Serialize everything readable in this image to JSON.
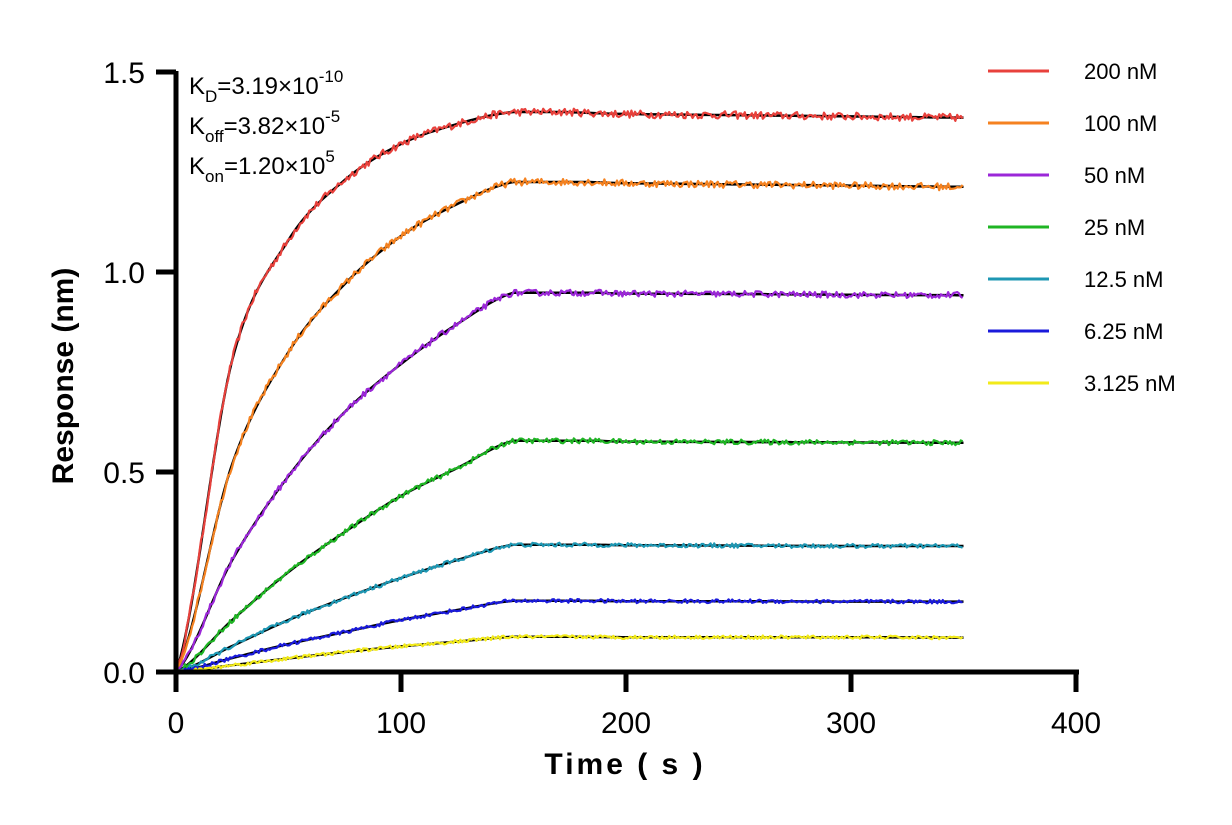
{
  "chart_data": {
    "type": "line",
    "title": "",
    "xlabel": "Time ( s )",
    "ylabel": "Response (nm)",
    "xlim": [
      0,
      400
    ],
    "ylim": [
      0,
      1.5
    ],
    "xticks": [
      0,
      100,
      200,
      300,
      400
    ],
    "yticks": [
      0.0,
      0.5,
      1.0,
      1.5
    ],
    "xtick_labels": [
      "0",
      "100",
      "200",
      "300",
      "400"
    ],
    "ytick_labels": [
      "0.0",
      "0.5",
      "1.0",
      "1.5"
    ],
    "grid": false,
    "legend": "right",
    "association_end": 150,
    "end_time": 350,
    "fit_color": "#000000",
    "series": [
      {
        "name": "200 nM",
        "color": "#e8413c",
        "x": [
          0,
          25,
          50,
          75,
          100,
          125,
          150,
          200,
          250,
          300,
          350
        ],
        "values": [
          0,
          0.78,
          1.08,
          1.23,
          1.32,
          1.37,
          1.4,
          1.395,
          1.392,
          1.389,
          1.386
        ]
      },
      {
        "name": "100 nM",
        "color": "#f58220",
        "x": [
          0,
          25,
          50,
          75,
          100,
          125,
          150,
          200,
          250,
          300,
          350
        ],
        "values": [
          0,
          0.52,
          0.8,
          0.97,
          1.09,
          1.17,
          1.225,
          1.222,
          1.219,
          1.216,
          1.213
        ]
      },
      {
        "name": "50 nM",
        "color": "#9b27d8",
        "x": [
          0,
          25,
          50,
          75,
          100,
          125,
          150,
          200,
          250,
          300,
          350
        ],
        "values": [
          0,
          0.28,
          0.49,
          0.65,
          0.77,
          0.87,
          0.948,
          0.946,
          0.945,
          0.943,
          0.942
        ]
      },
      {
        "name": "25 nM",
        "color": "#1fb524",
        "x": [
          0,
          25,
          50,
          75,
          100,
          125,
          150,
          200,
          250,
          300,
          350
        ],
        "values": [
          0,
          0.13,
          0.25,
          0.35,
          0.44,
          0.51,
          0.578,
          0.576,
          0.575,
          0.574,
          0.573
        ]
      },
      {
        "name": "12.5 nM",
        "color": "#1e97b3",
        "x": [
          0,
          25,
          50,
          75,
          100,
          125,
          150,
          200,
          250,
          300,
          350
        ],
        "values": [
          0,
          0.065,
          0.13,
          0.185,
          0.235,
          0.28,
          0.318,
          0.317,
          0.316,
          0.315,
          0.315
        ]
      },
      {
        "name": "6.25 nM",
        "color": "#1a1adb",
        "x": [
          0,
          25,
          50,
          75,
          100,
          125,
          150,
          200,
          250,
          300,
          350
        ],
        "values": [
          0,
          0.035,
          0.07,
          0.1,
          0.13,
          0.155,
          0.178,
          0.177,
          0.177,
          0.176,
          0.176
        ]
      },
      {
        "name": "3.125 nM",
        "color": "#f2ea1a",
        "x": [
          0,
          25,
          50,
          75,
          100,
          125,
          150,
          200,
          250,
          300,
          350
        ],
        "values": [
          0,
          0.017,
          0.034,
          0.05,
          0.064,
          0.076,
          0.088,
          0.087,
          0.087,
          0.087,
          0.086
        ]
      }
    ],
    "annotations": [
      {
        "main": "K",
        "sub": "D",
        "value": "=3.19×10",
        "exp": "-10"
      },
      {
        "main": "K",
        "sub": "off",
        "value": "=3.82×10",
        "exp": "-5"
      },
      {
        "main": "K",
        "sub": "on",
        "value": "=1.20×10",
        "exp": "5"
      }
    ]
  }
}
